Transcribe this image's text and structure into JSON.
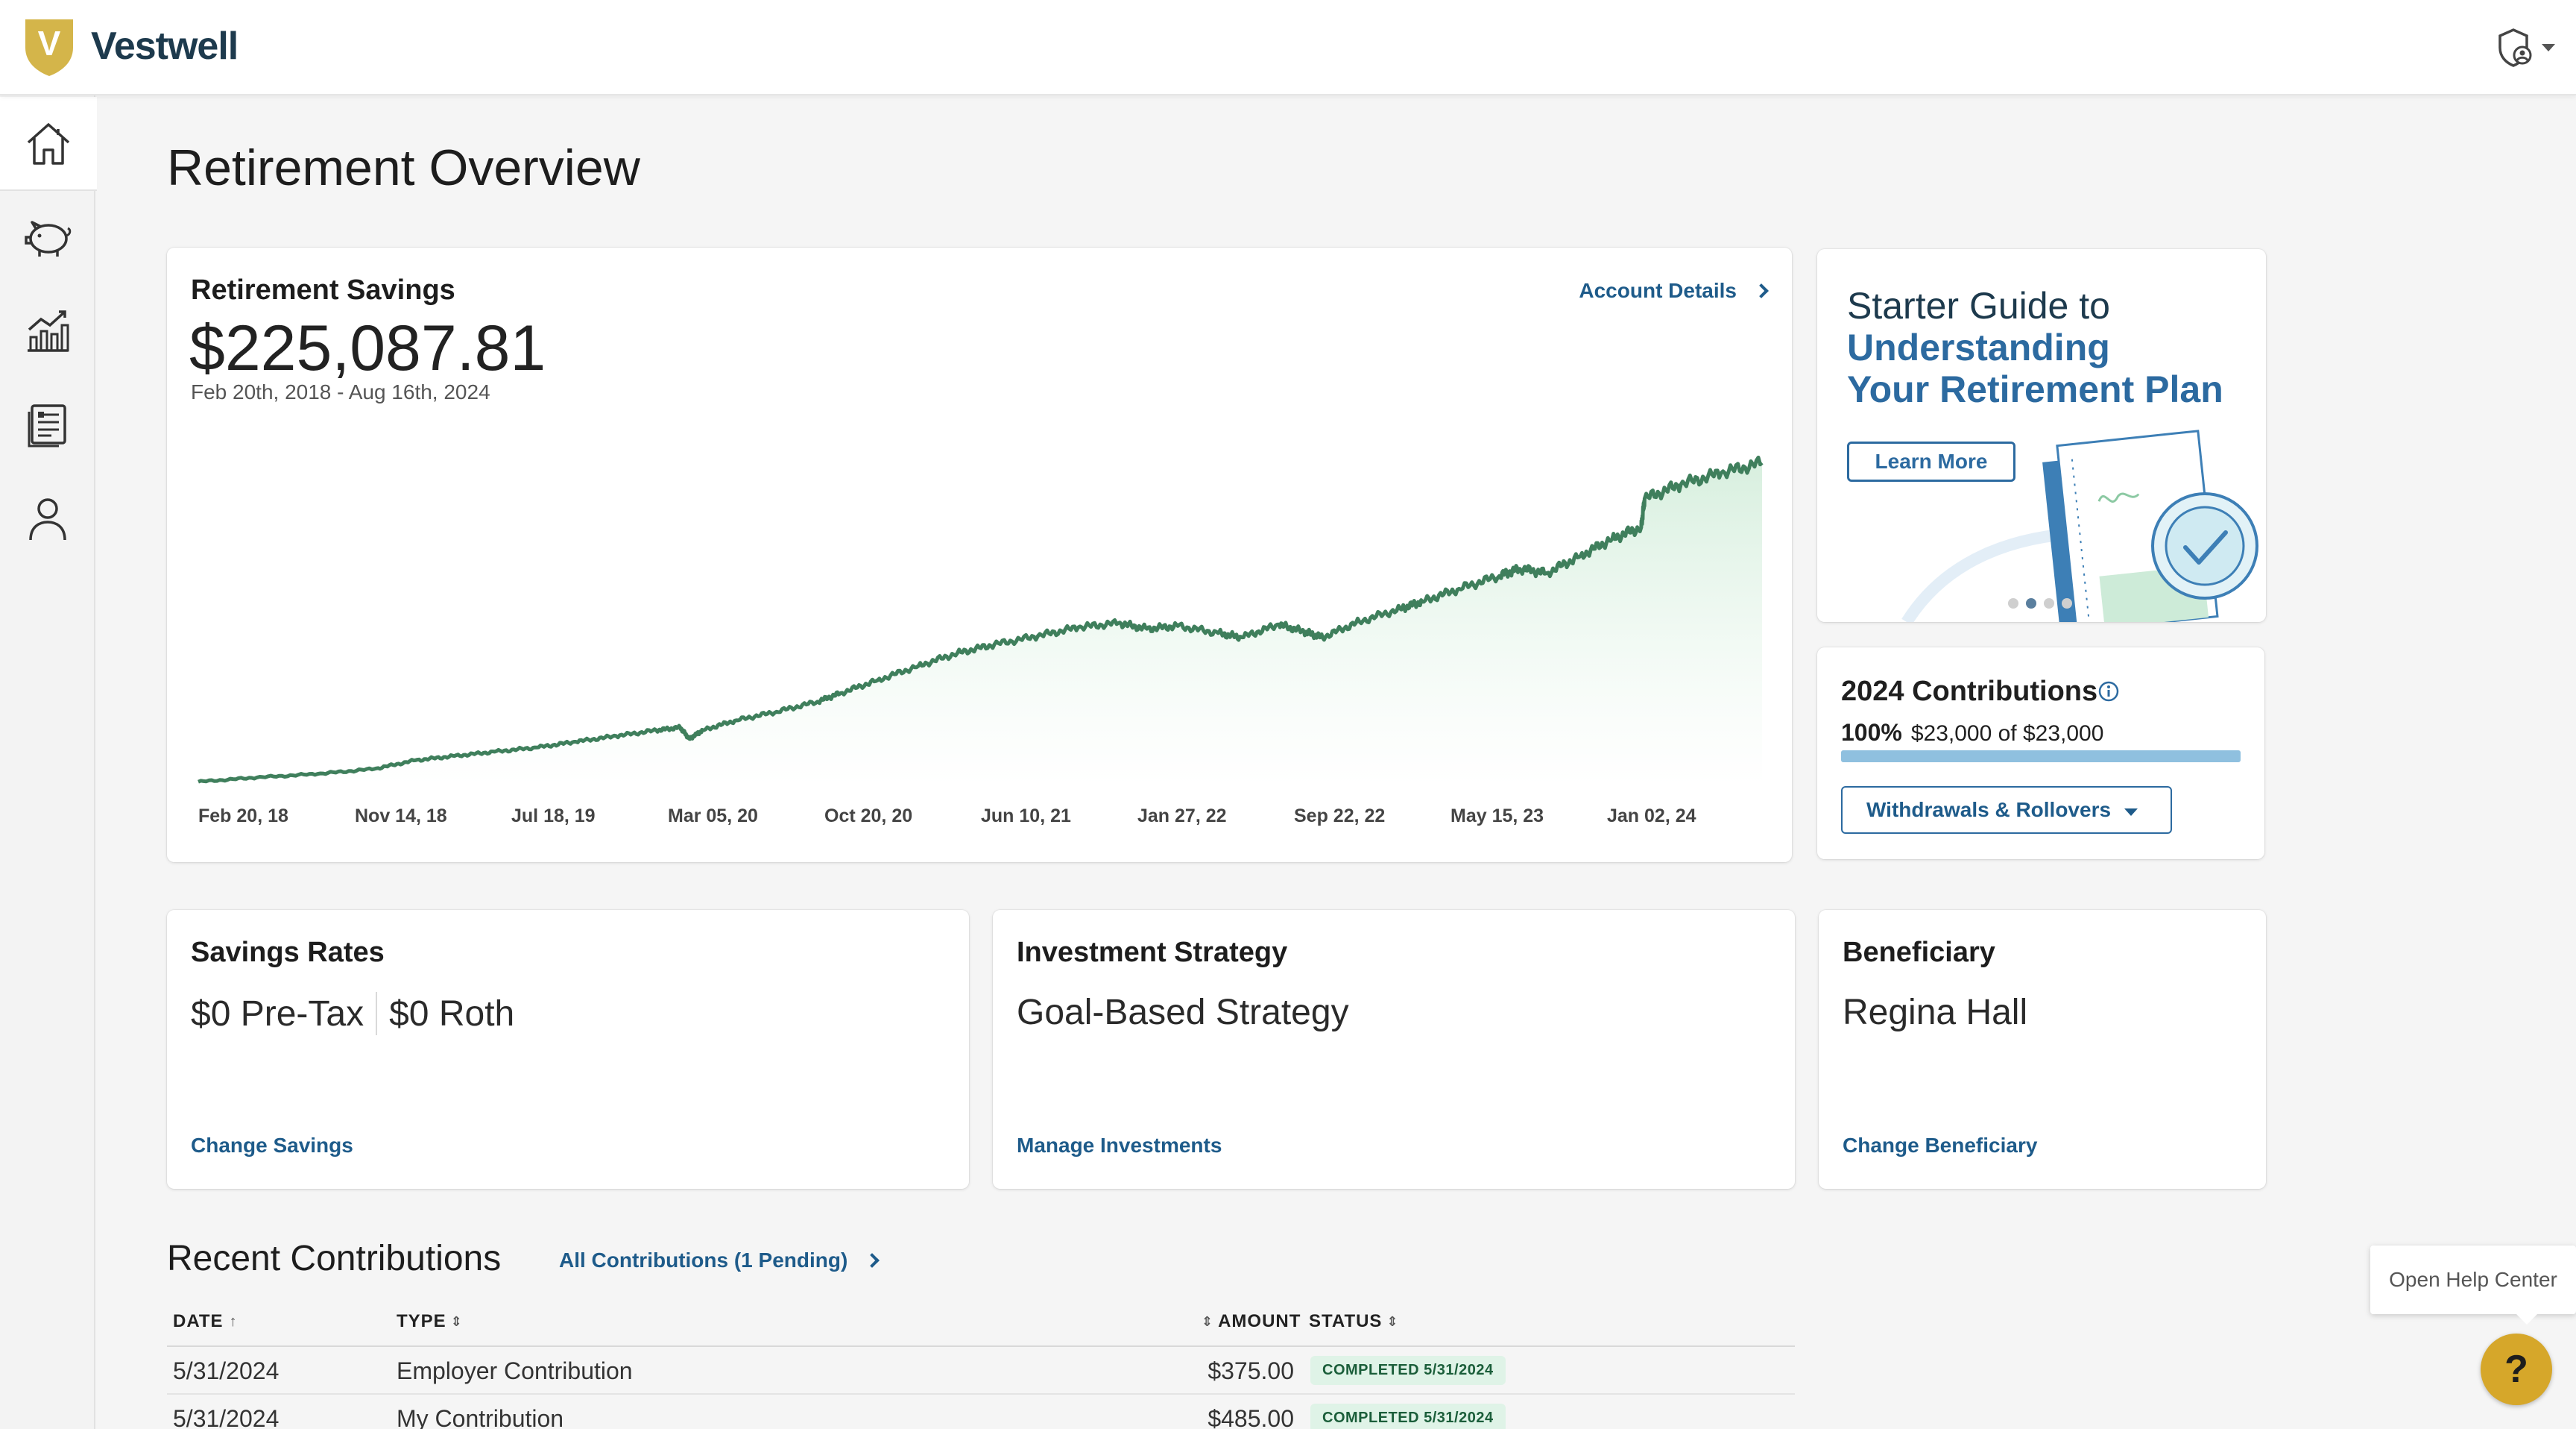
{
  "header": {
    "logo_letter": "V",
    "brand": "Vestwell"
  },
  "sidebar": {
    "items": [
      {
        "name": "home-icon"
      },
      {
        "name": "piggy-bank-icon"
      },
      {
        "name": "growth-chart-icon"
      },
      {
        "name": "documents-icon"
      },
      {
        "name": "profile-icon"
      }
    ]
  },
  "page": {
    "title": "Retirement Overview"
  },
  "savings": {
    "title": "Retirement Savings",
    "amount": "$225,087.81",
    "range": "Feb 20th, 2018 - Aug 16th, 2024",
    "details_link": "Account Details"
  },
  "chart_data": {
    "type": "area",
    "title": "",
    "xlabel": "",
    "ylabel": "",
    "x_ticks": [
      "Feb 20, 18",
      "Nov 14, 18",
      "Jul 18, 19",
      "Mar 05, 20",
      "Oct 20, 20",
      "Jun 10, 21",
      "Jan 27, 22",
      "Sep 22, 22",
      "May 15, 23",
      "Jan 02, 24"
    ],
    "color": "#3f7f5c",
    "fill": "#e6f5ea",
    "series": [
      {
        "x": [
          "2018-02-20",
          "2018-05-20",
          "2018-08-20",
          "2018-11-14",
          "2019-01-15",
          "2019-03-15",
          "2019-05-15",
          "2019-07-18",
          "2019-09-15",
          "2019-11-15",
          "2020-01-15",
          "2020-02-20",
          "2020-03-05",
          "2020-03-25",
          "2020-05-15",
          "2020-07-15",
          "2020-09-15",
          "2020-10-20",
          "2020-12-15",
          "2021-02-15",
          "2021-04-15",
          "2021-06-10",
          "2021-08-15",
          "2021-10-15",
          "2021-12-15",
          "2022-01-27",
          "2022-03-15",
          "2022-05-15",
          "2022-06-20",
          "2022-08-15",
          "2022-09-22",
          "2022-10-20",
          "2022-12-15",
          "2023-02-15",
          "2023-03-20",
          "2023-05-15",
          "2023-07-15",
          "2023-08-15",
          "2023-09-25",
          "2023-11-15",
          "2024-01-02",
          "2024-02-15",
          "2024-02-20",
          "2024-04-15",
          "2024-06-15",
          "2024-08-16"
        ],
        "y": [
          2000,
          5000,
          7500,
          11000,
          17000,
          20000,
          23000,
          26000,
          30000,
          34000,
          38000,
          40000,
          32000,
          38000,
          45000,
          51000,
          58000,
          64000,
          73000,
          83000,
          92000,
          98000,
          104000,
          110000,
          113000,
          109000,
          111000,
          106000,
          103000,
          112000,
          107000,
          103000,
          114000,
          123000,
          128000,
          137000,
          146000,
          151000,
          148000,
          160000,
          172000,
          180000,
          200000,
          210000,
          218000,
          225087.81
        ]
      }
    ],
    "ylim": [
      0,
      240000
    ],
    "grid": false,
    "legend": "none"
  },
  "guide": {
    "line1": "Starter Guide to",
    "line2": "Understanding",
    "line3": "Your Retirement Plan",
    "button": "Learn More",
    "slide_count": 4,
    "active_slide": 2
  },
  "contributions": {
    "title": "2024 Contributions",
    "percent": "100%",
    "summary": "$23,000 of $23,000",
    "progress": 1.0,
    "button": "Withdrawals & Rollovers"
  },
  "savings_rates": {
    "title": "Savings Rates",
    "pretax": "$0 Pre-Tax",
    "roth": "$0 Roth",
    "link": "Change Savings"
  },
  "investment": {
    "title": "Investment Strategy",
    "value": "Goal-Based Strategy",
    "link": "Manage Investments"
  },
  "beneficiary": {
    "title": "Beneficiary",
    "value": "Regina Hall",
    "link": "Change Beneficiary"
  },
  "recent": {
    "title": "Recent Contributions",
    "link": "All Contributions (1 Pending)",
    "columns": {
      "date": "DATE",
      "type": "TYPE",
      "amount": "AMOUNT",
      "status": "STATUS"
    },
    "rows": [
      {
        "date": "5/31/2024",
        "type": "Employer Contribution",
        "amount": "$375.00",
        "status": "COMPLETED 5/31/2024"
      },
      {
        "date": "5/31/2024",
        "type": "My Contribution",
        "amount": "$485.00",
        "status": "COMPLETED 5/31/2024"
      }
    ]
  },
  "help": {
    "tooltip": "Open Help Center",
    "button": "?"
  }
}
